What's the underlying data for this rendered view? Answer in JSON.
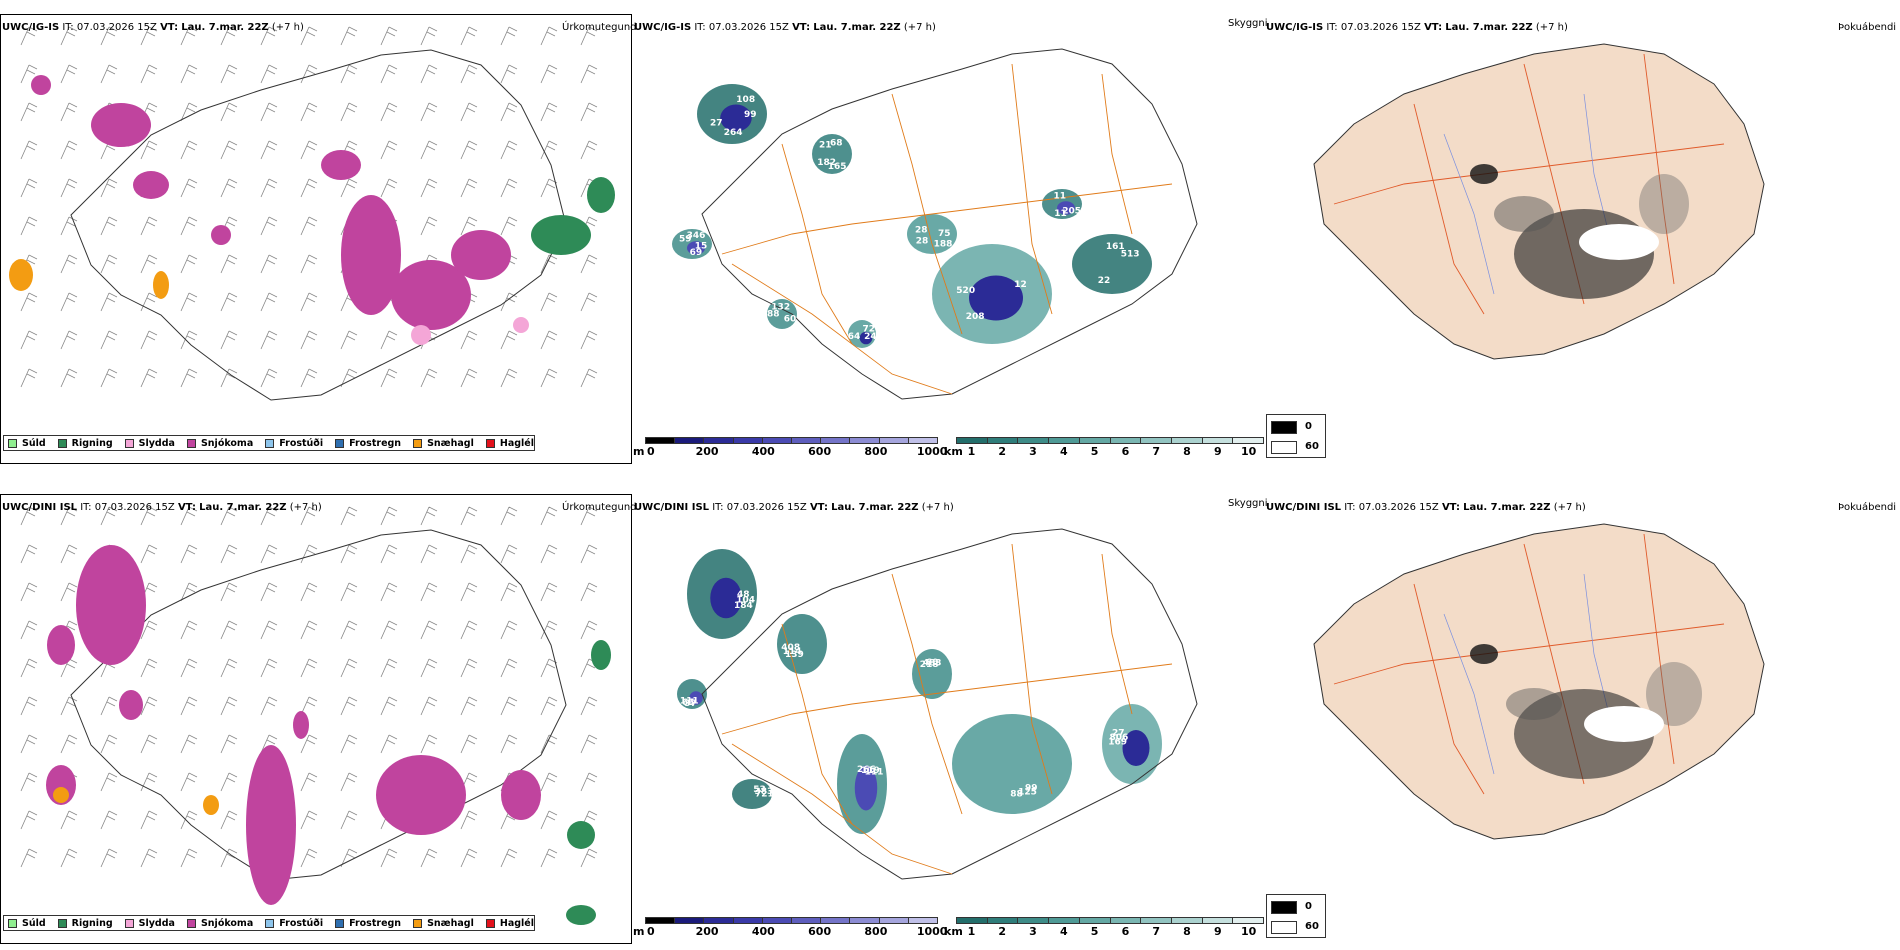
{
  "rows": [
    {
      "model": "UWC/IG-IS",
      "it_label": "IT:",
      "it_value": "07.03.2026 15Z",
      "vt_label": "VT:",
      "vt_value": "Lau. 7.mar. 22Z",
      "lead": "(+7 h)"
    },
    {
      "model": "UWC/DINI ISL",
      "it_label": "IT:",
      "it_value": "07.03.2026 15Z",
      "vt_label": "VT:",
      "vt_value": "Lau. 7.mar. 22Z",
      "lead": "(+7 h)"
    }
  ],
  "panels": {
    "precip_type": {
      "title": "Úrkomutegund"
    },
    "visibility": {
      "title": "Skyggni"
    },
    "fog": {
      "title": "Þokuábendi"
    }
  },
  "precip_legend": [
    {
      "label": "Súld",
      "color": "#90ee90"
    },
    {
      "label": "Rigning",
      "color": "#2e8b57"
    },
    {
      "label": "Slydda",
      "color": "#f4a6d7"
    },
    {
      "label": "Snjókoma",
      "color": "#c0449e"
    },
    {
      "label": "Frostúði",
      "color": "#8ec5ec"
    },
    {
      "label": "Frostregn",
      "color": "#2f6fb0"
    },
    {
      "label": "Snæhagl",
      "color": "#f39c12"
    },
    {
      "label": "Haglél",
      "color": "#e3111b"
    }
  ],
  "height_scale": {
    "unit": "m",
    "ticks": [
      "0",
      "200",
      "400",
      "600",
      "800",
      "1000"
    ],
    "colors": [
      "#000000",
      "#1a1a7a",
      "#2b2b96",
      "#3a3aa8",
      "#4b4bb4",
      "#5e5ebd",
      "#7474c8",
      "#8c8cd3",
      "#a5a5dd",
      "#c0c0e8"
    ]
  },
  "visibility_scale": {
    "unit": "km",
    "ticks": [
      "1",
      "2",
      "3",
      "4",
      "5",
      "6",
      "7",
      "8",
      "9",
      "10"
    ],
    "colors": [
      "#236e6b",
      "#2f7d7a",
      "#3e8c88",
      "#4f9a96",
      "#64a8a4",
      "#7ab6b2",
      "#92c4c1",
      "#abd2cf",
      "#c5e0de",
      "#e2efee"
    ]
  },
  "fog_legend": [
    {
      "label": "0",
      "color": "#000000"
    },
    {
      "label": "60",
      "color": "#ffffff"
    }
  ],
  "vis_labels": [
    [
      "99",
      "182",
      "346",
      "188",
      "520",
      "513",
      "11",
      "132",
      "24",
      "27",
      "68",
      "69",
      "28",
      "12",
      "22",
      "11",
      "60",
      "64",
      "108",
      "165",
      "59",
      "75",
      "208",
      "161",
      "205",
      "88",
      "726",
      "264",
      "21",
      "15",
      "28"
    ],
    [
      "48",
      "139",
      "266",
      "99",
      "169",
      "53",
      "37",
      "218",
      "104",
      "114",
      "119",
      "125",
      "806",
      "383",
      "65",
      "483",
      "184",
      "408",
      "111",
      "88",
      "27",
      "721",
      "111",
      "60"
    ]
  ]
}
